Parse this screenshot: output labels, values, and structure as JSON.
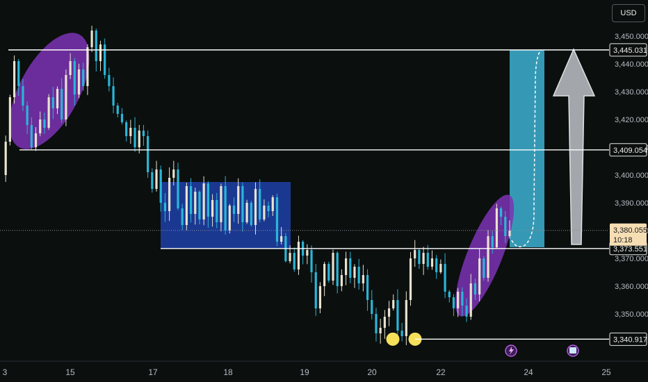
{
  "currency_button": "USD",
  "colors": {
    "background": "#0b0f0e",
    "bull": "#e8e2d0",
    "bear": "#29b6d8",
    "level_line": "#ffffff",
    "ellipse": "#7d32b4",
    "range_box": "#1f3fa8",
    "target_box": "#3aa8c8",
    "arrow": "#a3a7ac",
    "swing_dot": "#f5e05a",
    "current_label": "#f6deb4"
  },
  "chart_data": {
    "type": "candlestick",
    "y_axis_ticks": [
      "3,450.000",
      "3,440.000",
      "3,430.000",
      "3,420.000",
      "3,410.000",
      "3,400.000",
      "3,390.000",
      "3,380.000",
      "3,370.000",
      "3,360.000",
      "3,350.000"
    ],
    "ylim": [
      3337,
      3455
    ],
    "x_axis_ticks": [
      "3",
      "15",
      "17",
      "18",
      "19",
      "20",
      "22",
      "24",
      "25"
    ],
    "levels": [
      {
        "value": 3445.031,
        "label": "3,445.031"
      },
      {
        "value": 3409.054,
        "label": "3,409.054"
      },
      {
        "value": 3373.551,
        "label": "3,373.551"
      },
      {
        "value": 3340.917,
        "label": "3,340.917"
      }
    ],
    "current_price": {
      "value": 3380.055,
      "label": "3,380.055",
      "countdown": "10:18"
    },
    "range_box": {
      "top": 3397.5,
      "bottom": 3373.5
    },
    "target_box": {
      "top": 3445,
      "bottom": 3374
    },
    "series_close_path": [
      3400,
      3412,
      3428,
      3441,
      3432,
      3425,
      3418,
      3410,
      3415,
      3420,
      3417,
      3428,
      3424,
      3431,
      3420,
      3436,
      3441,
      3429,
      3438,
      3432,
      3446,
      3452,
      3441,
      3447,
      3436,
      3432,
      3425,
      3422,
      3419,
      3414,
      3417,
      3410,
      3416,
      3414,
      3401,
      3395,
      3402,
      3390,
      3387,
      3399,
      3402,
      3388,
      3382,
      3396,
      3386,
      3394,
      3384,
      3397,
      3385,
      3391,
      3383,
      3396,
      3380,
      3389,
      3386,
      3396,
      3383,
      3390,
      3382,
      3395,
      3384,
      3389,
      3387,
      3392,
      3376,
      3378,
      3369,
      3372,
      3366,
      3376,
      3371,
      3373,
      3365,
      3352,
      3360,
      3368,
      3362,
      3372,
      3360,
      3364,
      3370,
      3363,
      3367,
      3361,
      3364,
      3355,
      3350,
      3343,
      3345,
      3349,
      3352,
      3355,
      3344,
      3342,
      3355,
      3370,
      3373,
      3368,
      3372,
      3367,
      3370,
      3365,
      3368,
      3358,
      3356,
      3352,
      3358,
      3353,
      3349,
      3361,
      3357,
      3370,
      3363,
      3378,
      3374,
      3388,
      3385,
      3378,
      3380
    ]
  }
}
